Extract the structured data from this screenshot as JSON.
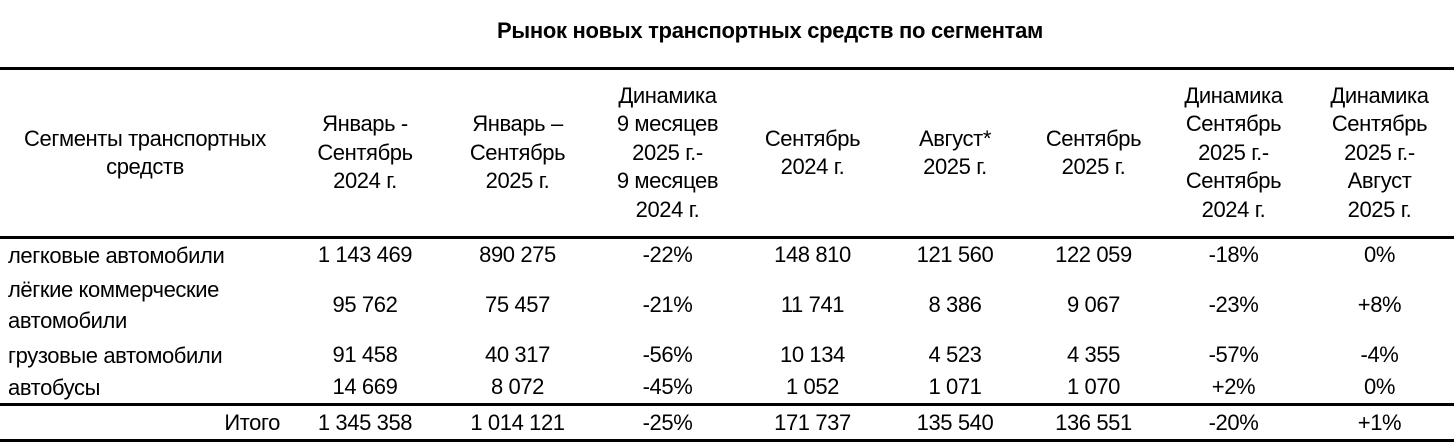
{
  "title": "Рынок новых транспортных средств по сегментам",
  "table": {
    "headers": [
      "Сегменты транспортных\nсредств",
      "Январь -\nСентябрь\n2024 г.",
      "Январь –\nСентябрь\n2025 г.",
      "Динамика\n9 месяцев\n2025 г.-\n9 месяцев\n2024 г.",
      "Сентябрь\n2024 г.",
      "Август*\n2025 г.",
      "Сентябрь\n2025 г.",
      "Динамика\nСентябрь\n2025 г.-\nСентябрь\n2024 г.",
      "Динамика\nСентябрь\n2025 г.-\nАвгуст\n2025 г."
    ],
    "rows": [
      [
        "легковые автомобили",
        "1 143 469",
        "890 275",
        "-22%",
        "148 810",
        "121 560",
        "122 059",
        "-18%",
        "0%"
      ],
      [
        "лёгкие коммерческие автомобили",
        "95 762",
        "75 457",
        "-21%",
        "11 741",
        "8 386",
        "9 067",
        "-23%",
        "+8%"
      ],
      [
        "грузовые автомобили",
        "91 458",
        "40 317",
        "-56%",
        "10 134",
        "4 523",
        "4 355",
        "-57%",
        "-4%"
      ],
      [
        "автобусы",
        "14 669",
        "8 072",
        "-45%",
        "1 052",
        "1 071",
        "1 070",
        "+2%",
        "0%"
      ]
    ],
    "total": [
      "Итого",
      "1 345 358",
      "1 014 121",
      "-25%",
      "171 737",
      "135 540",
      "136 551",
      "-20%",
      "+1%"
    ]
  }
}
